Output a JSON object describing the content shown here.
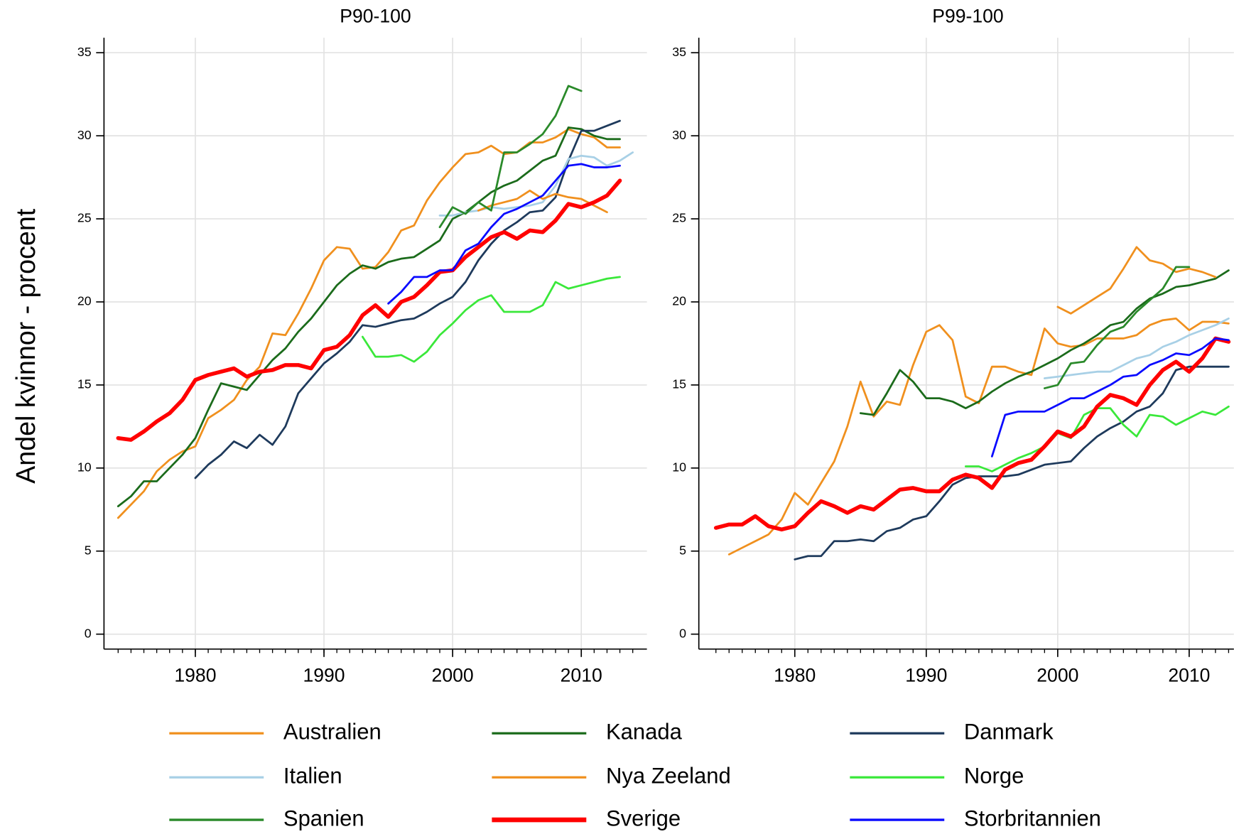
{
  "chart_data": [
    {
      "type": "line",
      "title": "P90-100",
      "ylabel": "Andel kvinnor - procent",
      "xlim": [
        1972.9,
        2015.1
      ],
      "xticks": [
        1980,
        1990,
        2000,
        2010
      ],
      "ylim": [
        -0.9,
        35.9
      ],
      "yticks": [
        0,
        5,
        10,
        15,
        20,
        25,
        30,
        35
      ],
      "grid": true,
      "x": [
        1974,
        1975,
        1976,
        1977,
        1978,
        1979,
        1980,
        1981,
        1982,
        1983,
        1984,
        1985,
        1986,
        1987,
        1988,
        1989,
        1990,
        1991,
        1992,
        1993,
        1994,
        1995,
        1996,
        1997,
        1998,
        1999,
        2000,
        2001,
        2002,
        2003,
        2004,
        2005,
        2006,
        2007,
        2008,
        2009,
        2010,
        2011,
        2012,
        2013,
        2014
      ],
      "series": [
        {
          "name": "Australien",
          "color": "#f0901e",
          "linewidth": 2.5,
          "values": [
            7.0,
            7.8,
            8.6,
            9.8,
            10.5,
            11.0,
            11.3,
            13.0,
            13.5,
            14.1,
            15.3,
            16.1,
            18.1,
            18.0,
            19.3,
            20.8,
            22.5,
            23.3,
            23.2,
            22.0,
            22.1,
            23.0,
            24.3,
            24.6,
            26.1,
            27.2,
            28.1,
            28.9,
            29.0,
            29.4,
            28.9,
            29.0,
            29.6,
            29.6,
            29.9,
            30.4,
            30.1,
            29.9,
            29.3,
            29.3,
            null
          ]
        },
        {
          "name": "Kanada",
          "color": "#1b6b1b",
          "linewidth": 2.5,
          "values": [
            7.7,
            8.3,
            9.2,
            9.2,
            10.0,
            10.8,
            11.8,
            13.5,
            15.1,
            14.9,
            14.7,
            15.6,
            16.5,
            17.2,
            18.2,
            19.0,
            20.0,
            21.0,
            21.7,
            22.2,
            22.0,
            22.4,
            22.6,
            22.7,
            23.2,
            23.7,
            25.0,
            25.4,
            26.0,
            26.6,
            27.0,
            27.3,
            27.9,
            28.5,
            28.8,
            30.5,
            30.4,
            30.0,
            29.8,
            29.8,
            null
          ]
        },
        {
          "name": "Danmark",
          "color": "#1e3a5c",
          "linewidth": 2.5,
          "values": [
            null,
            null,
            null,
            null,
            null,
            null,
            9.4,
            10.2,
            10.8,
            11.6,
            11.2,
            12.0,
            11.4,
            12.5,
            14.5,
            15.4,
            16.3,
            16.9,
            17.6,
            18.6,
            18.5,
            18.7,
            18.9,
            19.0,
            19.4,
            19.9,
            20.3,
            21.2,
            22.5,
            23.5,
            24.3,
            24.8,
            25.4,
            25.5,
            26.3,
            28.5,
            30.3,
            30.3,
            30.6,
            30.9,
            null
          ]
        },
        {
          "name": "Italien",
          "color": "#a8d0e6",
          "linewidth": 2.5,
          "values": [
            null,
            null,
            null,
            null,
            null,
            null,
            null,
            null,
            null,
            null,
            null,
            null,
            null,
            null,
            null,
            null,
            null,
            null,
            null,
            null,
            null,
            null,
            null,
            null,
            null,
            25.2,
            25.2,
            25.4,
            25.5,
            25.7,
            25.6,
            25.7,
            25.8,
            26.0,
            27.0,
            28.6,
            28.8,
            28.7,
            28.2,
            28.5,
            29.0
          ]
        },
        {
          "name": "Nya Zeeland",
          "color": "#f0901e",
          "linewidth": 2.5,
          "values": [
            null,
            null,
            null,
            null,
            null,
            null,
            null,
            null,
            null,
            null,
            null,
            null,
            null,
            null,
            null,
            null,
            null,
            null,
            null,
            null,
            null,
            null,
            null,
            null,
            null,
            null,
            null,
            null,
            25.5,
            25.8,
            26.0,
            26.2,
            26.7,
            26.2,
            26.5,
            26.3,
            26.2,
            25.8,
            25.4,
            null,
            null
          ]
        },
        {
          "name": "Norge",
          "color": "#3ae83a",
          "linewidth": 2.5,
          "values": [
            null,
            null,
            null,
            null,
            null,
            null,
            null,
            null,
            null,
            null,
            null,
            null,
            null,
            null,
            null,
            null,
            null,
            null,
            null,
            17.9,
            16.7,
            16.7,
            16.8,
            16.4,
            17.0,
            18.0,
            18.7,
            19.5,
            20.1,
            20.4,
            19.4,
            19.4,
            19.4,
            19.8,
            21.2,
            20.8,
            21.0,
            21.2,
            21.4,
            21.5,
            null
          ]
        },
        {
          "name": "Spanien",
          "color": "#2a8a2a",
          "linewidth": 2.5,
          "values": [
            null,
            null,
            null,
            null,
            null,
            null,
            null,
            null,
            null,
            null,
            null,
            null,
            null,
            null,
            null,
            null,
            null,
            null,
            null,
            null,
            null,
            null,
            null,
            null,
            null,
            24.5,
            25.7,
            25.3,
            26.0,
            25.5,
            29.0,
            29.0,
            29.5,
            30.1,
            31.2,
            33.0,
            32.7,
            null,
            null,
            null,
            null
          ]
        },
        {
          "name": "Sverige",
          "color": "#ff0000",
          "linewidth": 5,
          "values": [
            11.8,
            11.7,
            12.2,
            12.8,
            13.3,
            14.1,
            15.3,
            15.6,
            15.8,
            16.0,
            15.5,
            15.8,
            15.9,
            16.2,
            16.2,
            16.0,
            17.1,
            17.3,
            18.0,
            19.2,
            19.8,
            19.1,
            20.0,
            20.3,
            21.0,
            21.8,
            21.9,
            22.7,
            23.3,
            23.9,
            24.2,
            23.8,
            24.3,
            24.2,
            24.9,
            25.9,
            25.7,
            26.0,
            26.4,
            27.3,
            null
          ]
        },
        {
          "name": "Storbritannien",
          "color": "#0a0aff",
          "linewidth": 2.5,
          "values": [
            null,
            null,
            null,
            null,
            null,
            null,
            null,
            null,
            null,
            null,
            null,
            null,
            null,
            null,
            null,
            null,
            null,
            null,
            null,
            null,
            null,
            19.9,
            20.6,
            21.5,
            21.5,
            21.9,
            21.9,
            23.1,
            23.5,
            24.5,
            25.3,
            25.6,
            26.0,
            26.4,
            27.3,
            28.2,
            28.3,
            28.1,
            28.1,
            28.2,
            null
          ]
        }
      ]
    },
    {
      "type": "line",
      "title": "P99-100",
      "xlim": [
        1972.7,
        2013.4
      ],
      "xticks": [
        1980,
        1990,
        2000,
        2010
      ],
      "ylim": [
        -0.9,
        35.9
      ],
      "yticks": [
        0,
        5,
        10,
        15,
        20,
        25,
        30,
        35
      ],
      "grid": true,
      "x": [
        1974,
        1975,
        1976,
        1977,
        1978,
        1979,
        1980,
        1981,
        1982,
        1983,
        1984,
        1985,
        1986,
        1987,
        1988,
        1989,
        1990,
        1991,
        1992,
        1993,
        1994,
        1995,
        1996,
        1997,
        1998,
        1999,
        2000,
        2001,
        2002,
        2003,
        2004,
        2005,
        2006,
        2007,
        2008,
        2009,
        2010,
        2011,
        2012,
        2013,
        2014
      ],
      "series": [
        {
          "name": "Australien",
          "color": "#f0901e",
          "linewidth": 2.5,
          "values": [
            null,
            4.8,
            5.2,
            5.6,
            6.0,
            6.9,
            8.5,
            7.8,
            9.1,
            10.4,
            12.5,
            15.2,
            13.1,
            14.0,
            13.8,
            16.2,
            18.2,
            18.6,
            17.7,
            14.3,
            13.9,
            16.1,
            16.1,
            15.8,
            15.6,
            18.4,
            17.5,
            17.3,
            17.4,
            17.8,
            17.8,
            17.8,
            18.0,
            18.6,
            18.9,
            19.0,
            18.3,
            18.8,
            18.8,
            18.7,
            null
          ]
        },
        {
          "name": "Kanada",
          "color": "#1b6b1b",
          "linewidth": 2.5,
          "values": [
            null,
            null,
            null,
            null,
            null,
            null,
            null,
            null,
            null,
            null,
            null,
            13.3,
            13.2,
            14.5,
            15.9,
            15.2,
            14.2,
            14.2,
            14.0,
            13.6,
            14.0,
            14.6,
            15.1,
            15.5,
            15.8,
            16.2,
            16.6,
            17.1,
            17.5,
            18.0,
            18.6,
            18.8,
            19.6,
            20.2,
            20.5,
            20.9,
            21.0,
            21.2,
            21.4,
            21.9,
            null
          ]
        },
        {
          "name": "Danmark",
          "color": "#1e3a5c",
          "linewidth": 2.5,
          "values": [
            null,
            null,
            null,
            null,
            null,
            null,
            4.5,
            4.7,
            4.7,
            5.6,
            5.6,
            5.7,
            5.6,
            6.2,
            6.4,
            6.9,
            7.1,
            8.0,
            9.0,
            9.4,
            9.5,
            9.5,
            9.5,
            9.6,
            9.9,
            10.2,
            10.3,
            10.4,
            11.2,
            11.9,
            12.4,
            12.8,
            13.4,
            13.7,
            14.5,
            15.9,
            16.1,
            16.1,
            16.1,
            16.1,
            null
          ]
        },
        {
          "name": "Italien",
          "color": "#a8d0e6",
          "linewidth": 2.5,
          "values": [
            null,
            null,
            null,
            null,
            null,
            null,
            null,
            null,
            null,
            null,
            null,
            null,
            null,
            null,
            null,
            null,
            null,
            null,
            null,
            null,
            null,
            null,
            null,
            null,
            null,
            15.4,
            15.5,
            15.6,
            15.7,
            15.8,
            15.8,
            16.2,
            16.6,
            16.8,
            17.3,
            17.6,
            18.0,
            18.3,
            18.6,
            19.0,
            null
          ]
        },
        {
          "name": "Nya Zeeland",
          "color": "#f0901e",
          "linewidth": 2.5,
          "values": [
            null,
            null,
            null,
            null,
            null,
            null,
            null,
            null,
            null,
            null,
            null,
            null,
            null,
            null,
            null,
            null,
            null,
            null,
            null,
            null,
            null,
            null,
            null,
            null,
            null,
            null,
            19.7,
            19.3,
            19.8,
            20.3,
            20.8,
            22.0,
            23.3,
            22.5,
            22.3,
            21.8,
            22.0,
            21.8,
            21.5,
            null,
            null
          ]
        },
        {
          "name": "Norge",
          "color": "#3ae83a",
          "linewidth": 2.5,
          "values": [
            null,
            null,
            null,
            null,
            null,
            null,
            null,
            null,
            null,
            null,
            null,
            null,
            null,
            null,
            null,
            null,
            null,
            null,
            null,
            10.1,
            10.1,
            9.8,
            10.2,
            10.6,
            10.9,
            11.3,
            12.1,
            11.8,
            13.2,
            13.6,
            13.6,
            12.6,
            11.9,
            13.2,
            13.1,
            12.6,
            13.0,
            13.4,
            13.2,
            13.7,
            null
          ]
        },
        {
          "name": "Spanien",
          "color": "#2a8a2a",
          "linewidth": 2.5,
          "values": [
            null,
            null,
            null,
            null,
            null,
            null,
            null,
            null,
            null,
            null,
            null,
            null,
            null,
            null,
            null,
            null,
            null,
            null,
            null,
            null,
            null,
            null,
            null,
            null,
            null,
            14.8,
            15.0,
            16.3,
            16.4,
            17.4,
            18.2,
            18.5,
            19.4,
            20.1,
            20.8,
            22.1,
            22.1,
            null,
            null,
            null,
            null
          ]
        },
        {
          "name": "Sverige",
          "color": "#ff0000",
          "linewidth": 5,
          "values": [
            6.4,
            6.6,
            6.6,
            7.1,
            6.5,
            6.3,
            6.5,
            7.3,
            8.0,
            7.7,
            7.3,
            7.7,
            7.5,
            8.1,
            8.7,
            8.8,
            8.6,
            8.6,
            9.3,
            9.6,
            9.4,
            8.8,
            9.9,
            10.3,
            10.5,
            11.3,
            12.2,
            11.9,
            12.5,
            13.7,
            14.4,
            14.2,
            13.8,
            15.0,
            15.9,
            16.4,
            15.8,
            16.6,
            17.8,
            17.6,
            null
          ]
        },
        {
          "name": "Storbritannien",
          "color": "#0a0aff",
          "linewidth": 2.5,
          "values": [
            null,
            null,
            null,
            null,
            null,
            null,
            null,
            null,
            null,
            null,
            null,
            null,
            null,
            null,
            null,
            null,
            null,
            null,
            null,
            null,
            null,
            10.7,
            13.2,
            13.4,
            13.4,
            13.4,
            13.8,
            14.2,
            14.2,
            14.6,
            15.0,
            15.5,
            15.6,
            16.2,
            16.5,
            16.9,
            16.8,
            17.2,
            17.8,
            17.7,
            null
          ]
        }
      ]
    }
  ]
}
